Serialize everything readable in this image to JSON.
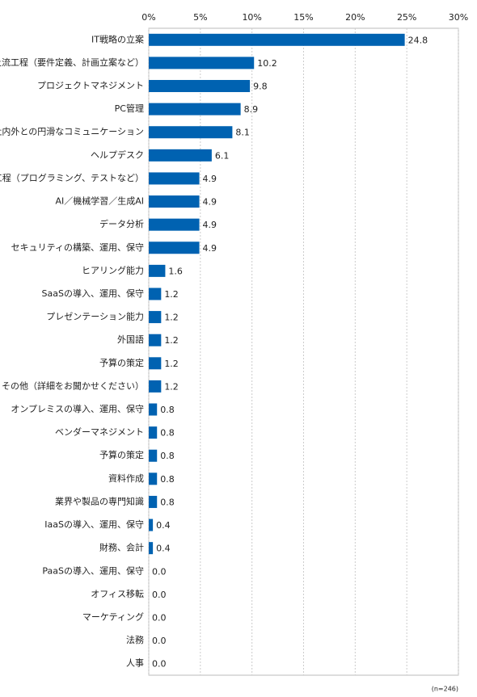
{
  "chart_data": {
    "type": "bar",
    "orientation": "horizontal",
    "categories": [
      "IT戦略の立案",
      "上流工程（要件定義、計画立案など）",
      "プロジェクトマネジメント",
      "PC管理",
      "社内外との円滑なコミュニケーション",
      "ヘルプデスク",
      "下流工程（プログラミング、テストなど）",
      "AI／機械学習／生成AI",
      "データ分析",
      "セキュリティの構築、運用、保守",
      "ヒアリング能力",
      "SaaSの導入、運用、保守",
      "プレゼンテーション能力",
      "外国語",
      "予算の策定",
      "その他（詳細をお聞かせください）",
      "オンプレミスの導入、運用、保守",
      "ベンダーマネジメント",
      "予算の策定",
      "資料作成",
      "業界や製品の専門知識",
      "IaaSの導入、運用、保守",
      "財務、会計",
      "PaaSの導入、運用、保守",
      "オフィス移転",
      "マーケティング",
      "法務",
      "人事"
    ],
    "values": [
      24.8,
      10.2,
      9.8,
      8.9,
      8.1,
      6.1,
      4.9,
      4.9,
      4.9,
      4.9,
      1.6,
      1.2,
      1.2,
      1.2,
      1.2,
      1.2,
      0.8,
      0.8,
      0.8,
      0.8,
      0.8,
      0.4,
      0.4,
      0,
      0,
      0,
      0,
      0
    ],
    "value_labels": [
      "24.8",
      "10.2",
      "9.8",
      "8.9",
      "8.1",
      "6.1",
      "4.9",
      "4.9",
      "4.9",
      "4.9",
      "1.6",
      "1.2",
      "1.2",
      "1.2",
      "1.2",
      "1.2",
      "0.8",
      "0.8",
      "0.8",
      "0.8",
      "0.8",
      "0.4",
      "0.4",
      "0.0",
      "0.0",
      "0.0",
      "0.0",
      "0.0"
    ],
    "color": "#0062b1",
    "xlim": [
      0,
      30
    ],
    "xticks": [
      {
        "value": 0,
        "label": "0%"
      },
      {
        "value": 5,
        "label": "5%"
      },
      {
        "value": 10,
        "label": "10%"
      },
      {
        "value": 15,
        "label": "15%"
      },
      {
        "value": 20,
        "label": "20%"
      },
      {
        "value": 25,
        "label": "25%"
      },
      {
        "value": 30,
        "label": "30%"
      }
    ],
    "grid": true,
    "note": "(n=246)"
  }
}
